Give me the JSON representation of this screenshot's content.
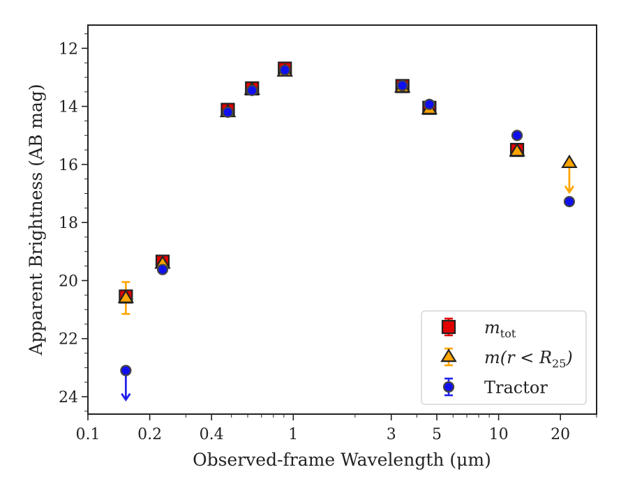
{
  "chart_data": {
    "type": "scatter",
    "xlabel": "Observed-frame Wavelength (μm)",
    "ylabel": "Apparent Brightness (AB mag)",
    "xscale": "log",
    "xlim": [
      0.1,
      30
    ],
    "ylim": [
      24.6,
      11.2
    ],
    "y_inverted": true,
    "x_ticks": [
      {
        "value": 0.1,
        "label": "0.1"
      },
      {
        "value": 0.2,
        "label": "0.2"
      },
      {
        "value": 0.4,
        "label": "0.4"
      },
      {
        "value": 1,
        "label": "1"
      },
      {
        "value": 3,
        "label": "3"
      },
      {
        "value": 5,
        "label": "5"
      },
      {
        "value": 10,
        "label": "10"
      },
      {
        "value": 20,
        "label": "20"
      }
    ],
    "y_ticks": [
      {
        "value": 12,
        "label": "12"
      },
      {
        "value": 14,
        "label": "14"
      },
      {
        "value": 16,
        "label": "16"
      },
      {
        "value": 18,
        "label": "18"
      },
      {
        "value": 20,
        "label": "20"
      },
      {
        "value": 22,
        "label": "22"
      },
      {
        "value": 24,
        "label": "24"
      }
    ],
    "grid": false,
    "legend_position": "lower-right",
    "series": [
      {
        "name": "m_tot",
        "legend_base": "m",
        "legend_sub": "tot",
        "marker": "square",
        "color": "#e00000",
        "errcolor": "#e00000",
        "points": [
          {
            "x": 0.153,
            "y": 20.55,
            "err": 0
          },
          {
            "x": 0.231,
            "y": 19.35,
            "err": 0.2
          },
          {
            "x": 0.48,
            "y": 14.12,
            "err": 0.1
          },
          {
            "x": 0.63,
            "y": 13.38,
            "err": 0.1
          },
          {
            "x": 0.91,
            "y": 12.7,
            "err": 0.1
          },
          {
            "x": 3.4,
            "y": 13.3,
            "err": 0.05
          },
          {
            "x": 4.6,
            "y": 14.05,
            "err": 0.05
          },
          {
            "x": 12.3,
            "y": 15.5,
            "err": 0.1
          }
        ]
      },
      {
        "name": "m(r < R25)",
        "legend_base": "m(r < R",
        "legend_sub": "25",
        "legend_tail": ")",
        "marker": "triangle",
        "color": "#ffa500",
        "errcolor": "#ffa500",
        "points": [
          {
            "x": 0.153,
            "y": 20.6,
            "err": 0.55
          },
          {
            "x": 0.231,
            "y": 19.42,
            "err": 0.1
          },
          {
            "x": 0.48,
            "y": 14.2,
            "err": 0.05
          },
          {
            "x": 0.63,
            "y": 13.43,
            "err": 0.05
          },
          {
            "x": 0.91,
            "y": 12.8,
            "err": 0.05
          },
          {
            "x": 3.4,
            "y": 13.35,
            "err": 0.05
          },
          {
            "x": 4.6,
            "y": 14.1,
            "err": 0.05
          },
          {
            "x": 12.3,
            "y": 15.55,
            "err": 0.05
          },
          {
            "x": 22.1,
            "y": 15.95,
            "err": 0,
            "upper_limit": true
          }
        ]
      },
      {
        "name": "Tractor",
        "legend_base": "Tractor",
        "marker": "circle",
        "color": "#1010ee",
        "errcolor": "#2020ee",
        "points": [
          {
            "x": 0.153,
            "y": 23.1,
            "err": 0,
            "upper_limit": true
          },
          {
            "x": 0.231,
            "y": 19.62,
            "err": 0.05
          },
          {
            "x": 0.48,
            "y": 14.2,
            "err": 0.05
          },
          {
            "x": 0.63,
            "y": 13.45,
            "err": 0.05
          },
          {
            "x": 0.91,
            "y": 12.75,
            "err": 0.05
          },
          {
            "x": 3.4,
            "y": 13.28,
            "err": 0.03
          },
          {
            "x": 4.6,
            "y": 13.93,
            "err": 0.03
          },
          {
            "x": 12.3,
            "y": 15.0,
            "err": 0.05
          },
          {
            "x": 22.1,
            "y": 17.28,
            "err": 0.05
          }
        ]
      }
    ]
  }
}
